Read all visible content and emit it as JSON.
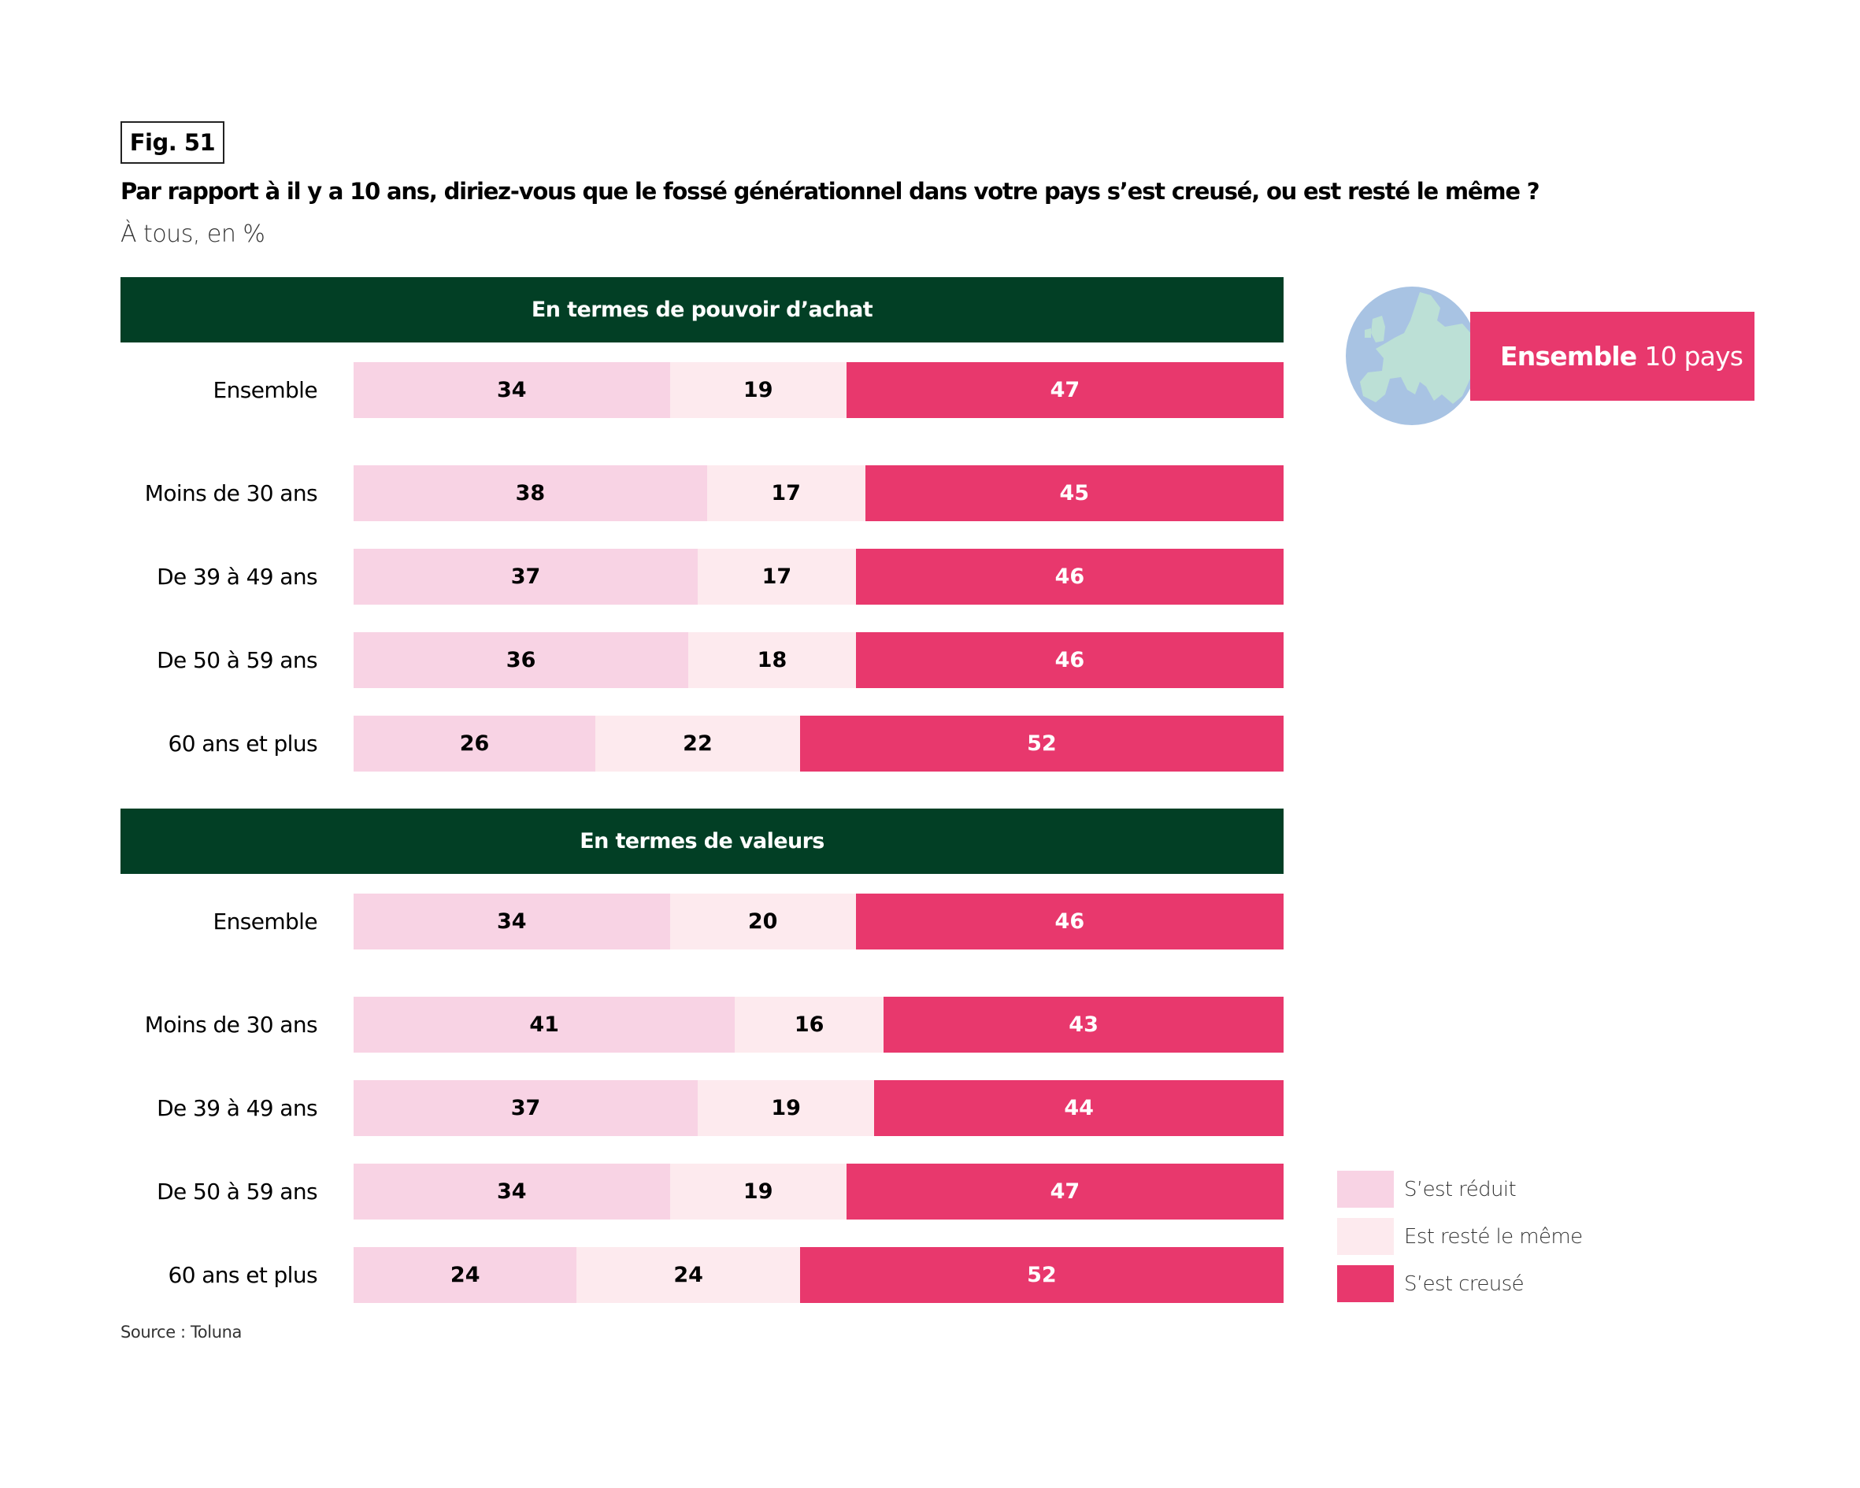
{
  "figure_label": "Fig. 51",
  "title": "Par rapport à il y a 10 ans, diriez-vous que le fossé générationnel dans votre pays s’est creusé, ou est resté le même ?",
  "subtitle": "À tous, en %",
  "badge": {
    "bold": "Ensemble",
    "rest": "10 pays"
  },
  "source": "Source : Toluna",
  "colors": {
    "reduit": "#F8D3E4",
    "meme": "#FDEAEE",
    "creuse": "#E8386D",
    "header": "#023F25",
    "globe_sea": "#A8C3E3",
    "globe_land": "#BCE0D6"
  },
  "chart_data": {
    "type": "bar",
    "orientation": "horizontal",
    "stacked": true,
    "unit": "%",
    "title": "Par rapport à il y a 10 ans, diriez-vous que le fossé générationnel dans votre pays s’est creusé, ou est resté le même ?",
    "legend": [
      "S’est réduit",
      "Est resté le même",
      "S’est creusé"
    ],
    "legend_position": "bottom-right",
    "panels": [
      {
        "header": "En termes de pouvoir d’achat",
        "categories": [
          "Ensemble",
          "Moins de 30 ans",
          "De 39 à 49 ans",
          "De 50 à 59 ans",
          "60 ans et plus"
        ],
        "series": [
          {
            "name": "S’est réduit",
            "values": [
              34,
              38,
              37,
              36,
              26
            ]
          },
          {
            "name": "Est resté le même",
            "values": [
              19,
              17,
              17,
              18,
              22
            ]
          },
          {
            "name": "S’est creusé",
            "values": [
              47,
              45,
              46,
              46,
              52
            ]
          }
        ]
      },
      {
        "header": "En termes de valeurs",
        "categories": [
          "Ensemble",
          "Moins de 30 ans",
          "De 39 à 49 ans",
          "De 50 à 59 ans",
          "60 ans et plus"
        ],
        "series": [
          {
            "name": "S’est réduit",
            "values": [
              34,
              41,
              37,
              34,
              24
            ]
          },
          {
            "name": "Est resté le même",
            "values": [
              20,
              16,
              19,
              19,
              24
            ]
          },
          {
            "name": "S’est creusé",
            "values": [
              46,
              43,
              44,
              47,
              52
            ]
          }
        ]
      }
    ]
  }
}
